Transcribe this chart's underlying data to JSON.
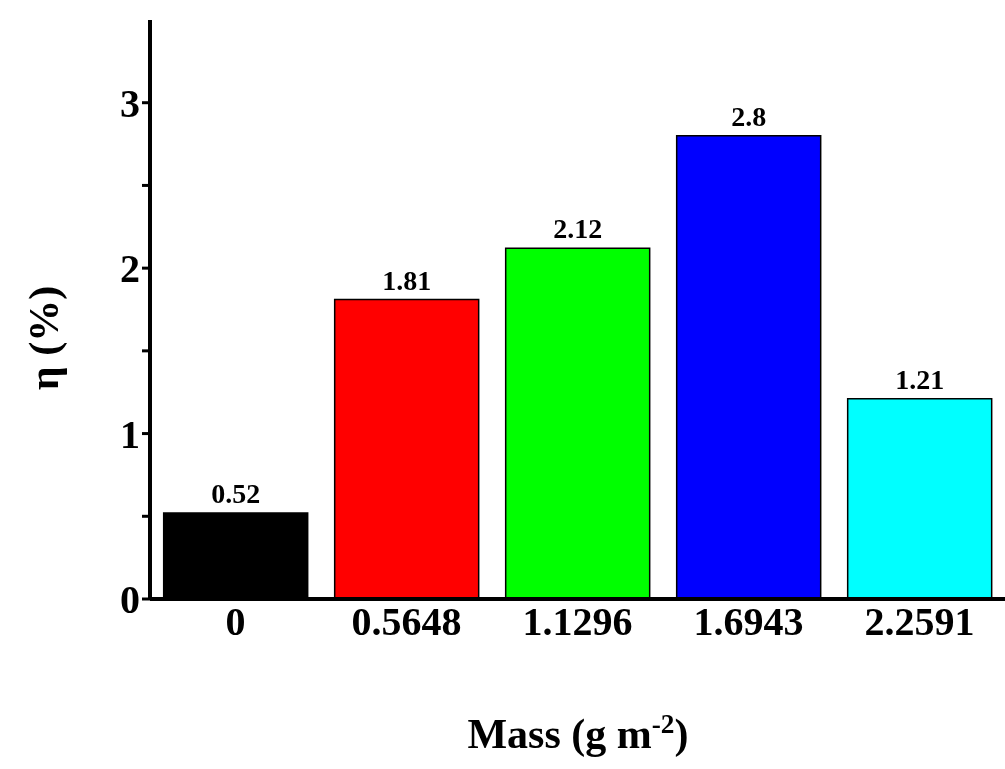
{
  "chart_data": {
    "type": "bar",
    "xlabel": "Mass (g m$^{-2}$)",
    "ylabel": "η (%)",
    "categories": [
      "0",
      "0.5648",
      "1.1296",
      "1.6943",
      "2.2591"
    ],
    "values": [
      0.52,
      1.81,
      2.12,
      2.8,
      1.21
    ],
    "colors": [
      "#000000",
      "#ff0000",
      "#00ff00",
      "#0000ff",
      "#00ffff"
    ],
    "ylim": [
      0,
      3.5
    ],
    "yticks": [
      0,
      {
        "value": 0.5,
        "label": null
      },
      1,
      {
        "value": 1.5,
        "label": null
      },
      2,
      {
        "value": 2.5,
        "label": null
      },
      3
    ],
    "data_labels": true,
    "grid": false,
    "legend": false
  }
}
